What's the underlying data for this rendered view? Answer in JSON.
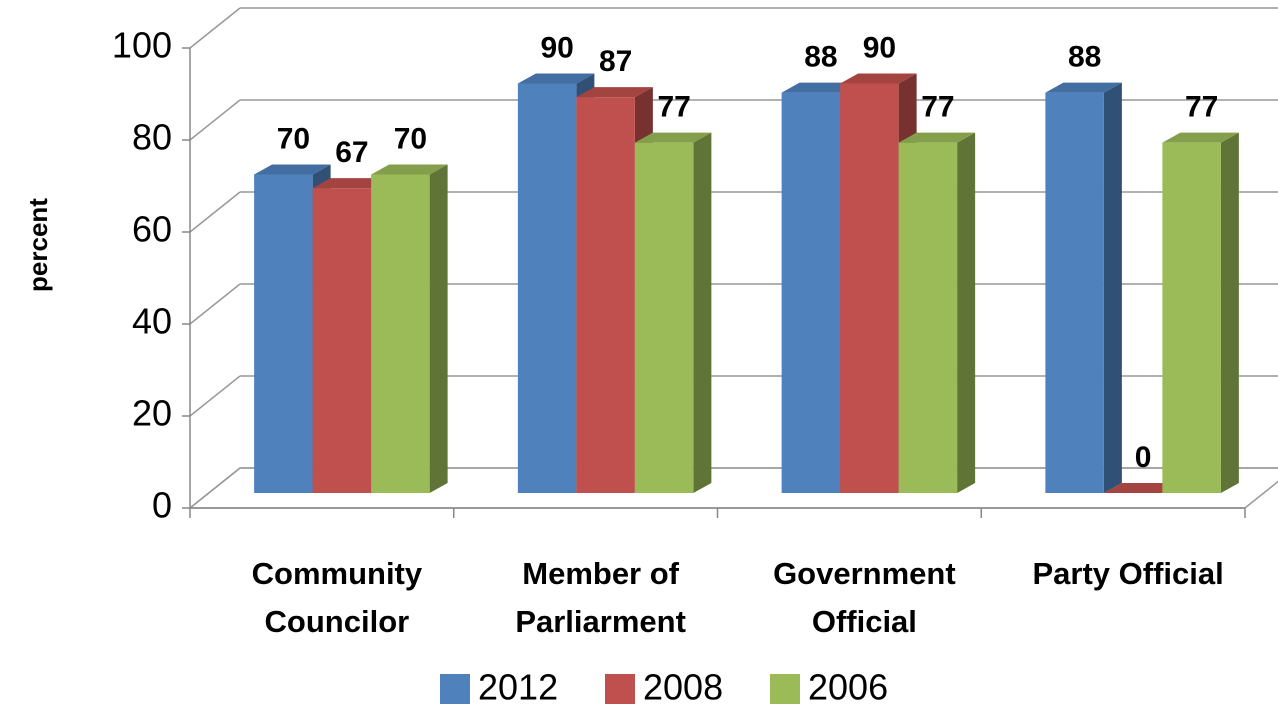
{
  "chart_data": {
    "type": "bar3d",
    "y_label": "percent",
    "categories": [
      "Community Councilor",
      "Member of Parliarment",
      "Government Official",
      "Party Official"
    ],
    "series": [
      {
        "name": "2012",
        "color": "#4f81bd",
        "values": [
          70,
          90,
          88,
          88
        ]
      },
      {
        "name": "2008",
        "color": "#c0504d",
        "values": [
          67,
          87,
          90,
          0
        ]
      },
      {
        "name": "2006",
        "color": "#9bbb59",
        "values": [
          70,
          77,
          77,
          77
        ]
      }
    ],
    "ylim": [
      0,
      100
    ],
    "yticks": [
      0,
      20,
      40,
      60,
      80,
      100
    ],
    "grid": true,
    "legend": "bottom"
  }
}
